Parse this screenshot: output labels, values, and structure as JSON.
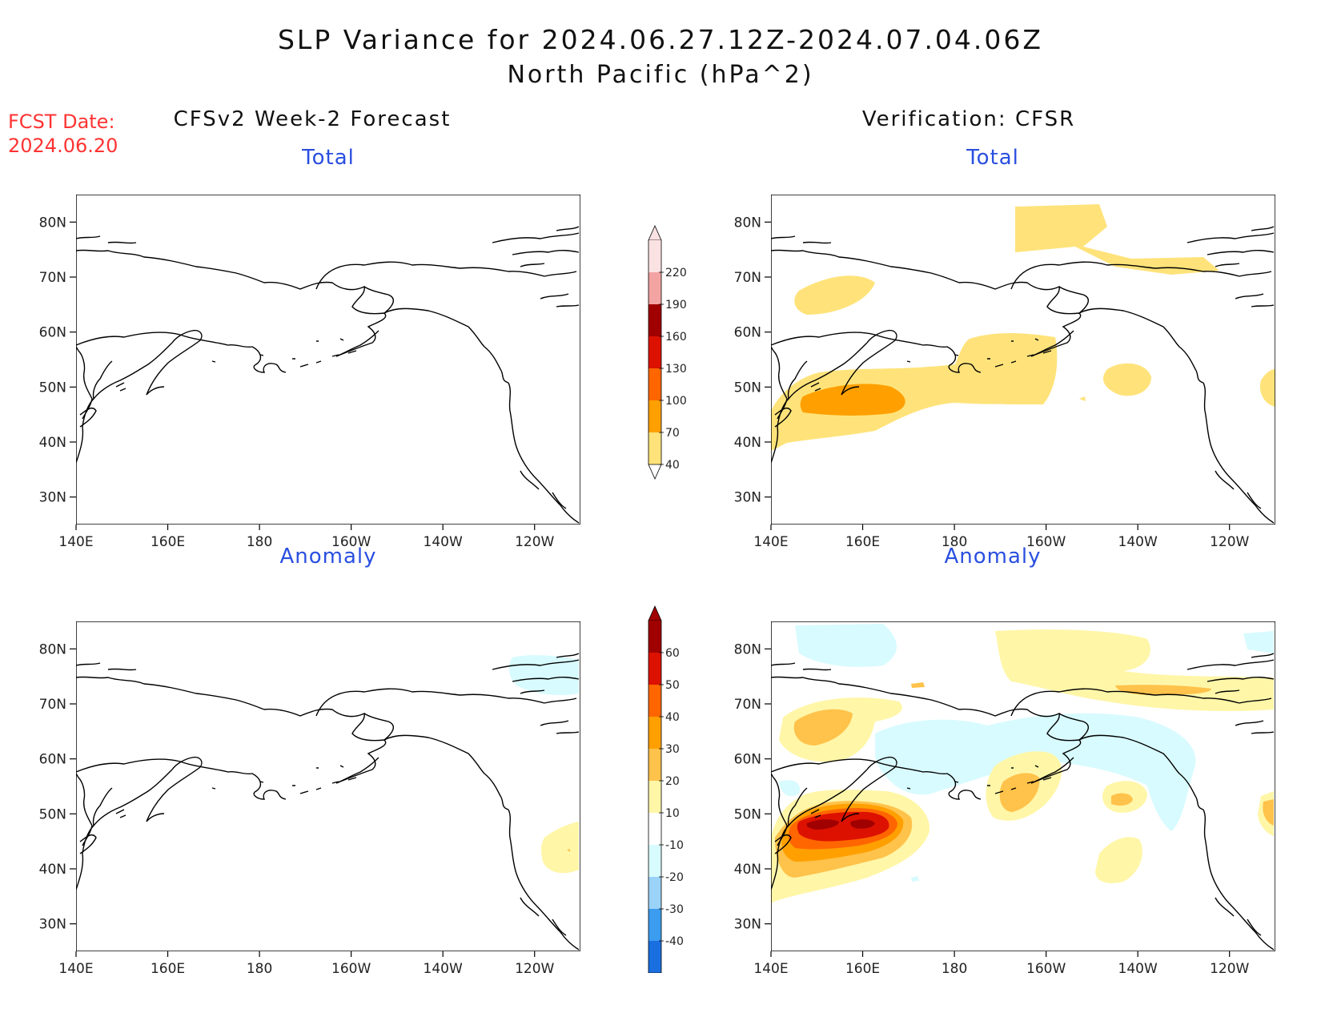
{
  "title": {
    "line1": "SLP Variance for 2024.06.27.12Z-2024.07.04.06Z",
    "line2": "North Pacific (hPa^2)"
  },
  "forecast_date": {
    "label": "FCST Date:",
    "value": "2024.06.20"
  },
  "columns": {
    "left": "CFSv2 Week-2 Forecast",
    "right": "Verification: CFSR"
  },
  "panels": {
    "total_label": "Total",
    "anomaly_label": "Anomaly"
  },
  "axes": {
    "lat_ticks": [
      "80N",
      "70N",
      "60N",
      "50N",
      "40N",
      "30N"
    ],
    "lon_ticks": [
      "140E",
      "160E",
      "180",
      "160W",
      "140W",
      "120W"
    ],
    "lat_range": [
      25,
      85
    ],
    "lon_range": [
      140,
      250
    ]
  },
  "colorbars": {
    "total": {
      "labels": [
        "220",
        "190",
        "160",
        "130",
        "100",
        "70",
        "40"
      ],
      "colors": [
        "#fbe2e2",
        "#f4a3a3",
        "#a00000",
        "#dd1100",
        "#ff6600",
        "#ffa000",
        "#ffe37a"
      ]
    },
    "anomaly": {
      "labels": [
        "60",
        "50",
        "40",
        "30",
        "20",
        "10",
        "-10",
        "-20",
        "-30",
        "-40"
      ],
      "colors": [
        "#a00000",
        "#dd1100",
        "#ff6600",
        "#ffa000",
        "#ffc24a",
        "#fff6a8",
        "#ffffff",
        "#d8fbff",
        "#9ad2f8",
        "#3b9cf0",
        "#1a6fe0"
      ]
    }
  }
}
